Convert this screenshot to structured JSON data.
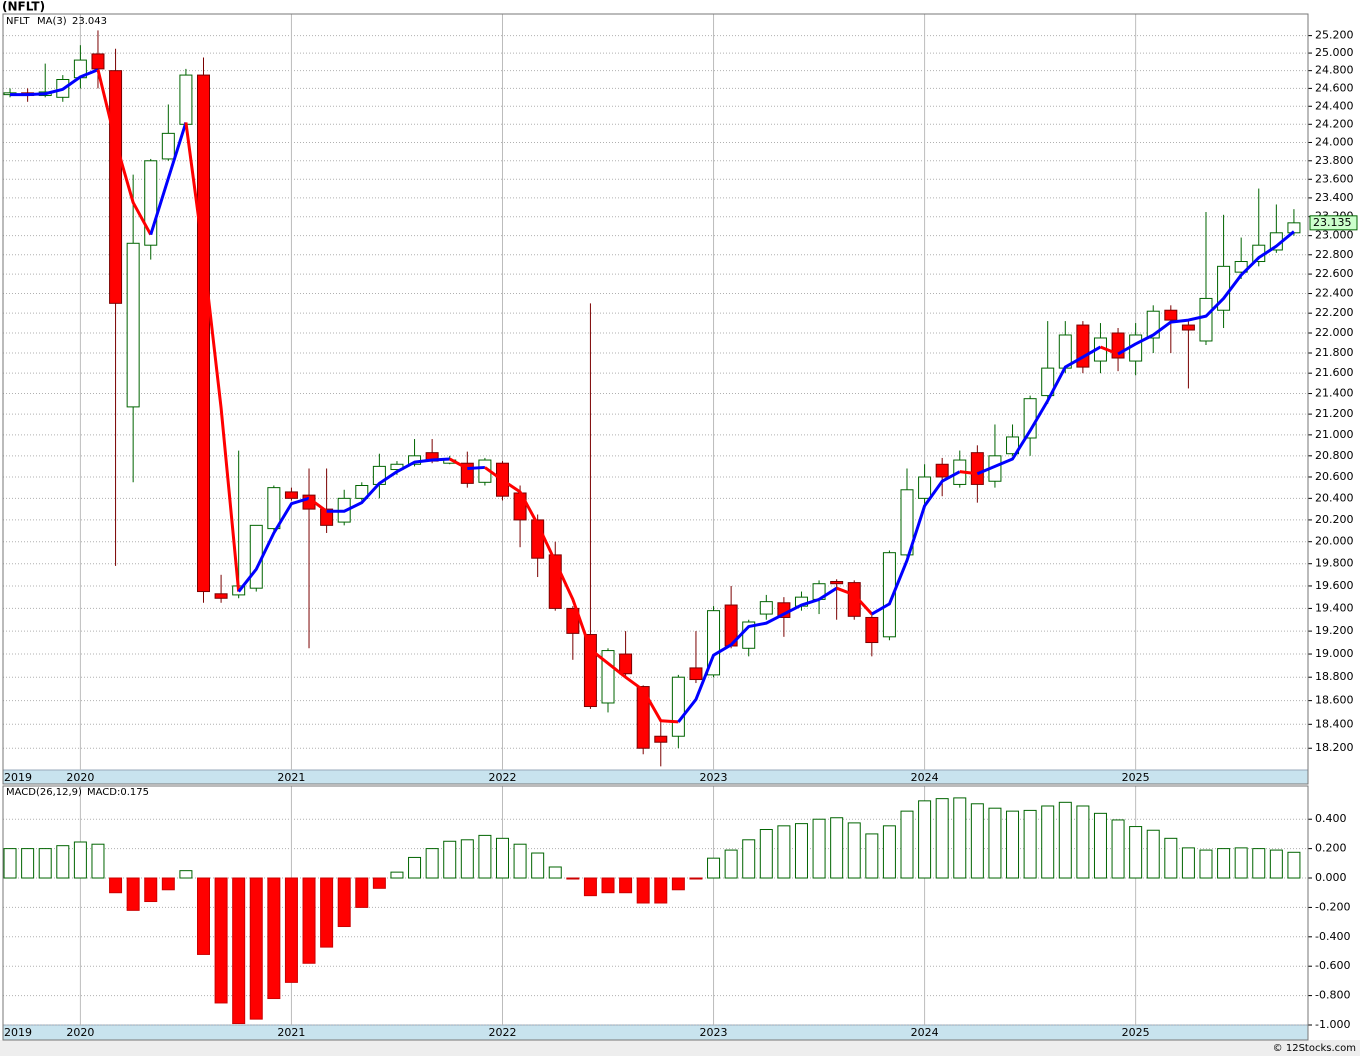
{
  "footer": "© 12Stocks.com",
  "chart_data": [
    {
      "type": "candlestick",
      "title": "(NFLT)",
      "log_scale": true,
      "grid": true,
      "up_color": "#006400",
      "down_color": "#ff0000",
      "xlim": [
        -0.4,
        73.8
      ],
      "xticks": [
        {
          "value": -0.4,
          "label": "2019"
        },
        {
          "value": 4,
          "label": "2020"
        },
        {
          "value": 16,
          "label": "2021"
        },
        {
          "value": 28,
          "label": "2022"
        },
        {
          "value": 40,
          "label": "2023"
        },
        {
          "value": 52,
          "label": "2024"
        },
        {
          "value": 64,
          "label": "2025"
        }
      ],
      "ylim": [
        18.02,
        25.45
      ],
      "yticks": [
        {
          "value": 18.2,
          "label": "18.200"
        },
        {
          "value": 18.4,
          "label": "18.400"
        },
        {
          "value": 18.6,
          "label": "18.600"
        },
        {
          "value": 18.8,
          "label": "18.800"
        },
        {
          "value": 19.0,
          "label": "19.000"
        },
        {
          "value": 19.2,
          "label": "19.200"
        },
        {
          "value": 19.4,
          "label": "19.400"
        },
        {
          "value": 19.6,
          "label": "19.600"
        },
        {
          "value": 19.8,
          "label": "19.800"
        },
        {
          "value": 20.0,
          "label": "20.000"
        },
        {
          "value": 20.2,
          "label": "20.200"
        },
        {
          "value": 20.4,
          "label": "20.400"
        },
        {
          "value": 20.6,
          "label": "20.600"
        },
        {
          "value": 20.8,
          "label": "20.800"
        },
        {
          "value": 21.0,
          "label": "21.000"
        },
        {
          "value": 21.2,
          "label": "21.200"
        },
        {
          "value": 21.4,
          "label": "21.400"
        },
        {
          "value": 21.6,
          "label": "21.600"
        },
        {
          "value": 21.8,
          "label": "21.800"
        },
        {
          "value": 22.0,
          "label": "22.000"
        },
        {
          "value": 22.2,
          "label": "22.200"
        },
        {
          "value": 22.4,
          "label": "22.400"
        },
        {
          "value": 22.6,
          "label": "22.600"
        },
        {
          "value": 22.8,
          "label": "22.800"
        },
        {
          "value": 23.0,
          "label": "23.000"
        },
        {
          "value": 23.2,
          "label": "23.200"
        },
        {
          "value": 23.4,
          "label": "23.400"
        },
        {
          "value": 23.6,
          "label": "23.600"
        },
        {
          "value": 23.8,
          "label": "23.800"
        },
        {
          "value": 24.0,
          "label": "24.000"
        },
        {
          "value": 24.2,
          "label": "24.200"
        },
        {
          "value": 24.4,
          "label": "24.400"
        },
        {
          "value": 24.6,
          "label": "24.600"
        },
        {
          "value": 24.8,
          "label": "24.800"
        },
        {
          "value": 25.0,
          "label": "25.000"
        },
        {
          "value": 25.2,
          "label": "25.200"
        }
      ],
      "series": [
        {
          "name": "NFLT",
          "color": "#006400",
          "open": [
            24.53,
            24.55,
            24.52,
            24.5,
            24.72,
            24.99,
            24.8,
            21.27,
            22.9,
            23.82,
            24.2,
            24.75,
            19.53,
            19.52,
            19.58,
            20.12,
            20.46,
            20.43,
            20.3,
            20.18,
            20.4,
            20.53,
            20.67,
            20.72,
            20.83,
            20.73,
            20.73,
            20.55,
            20.73,
            20.45,
            20.2,
            19.88,
            19.4,
            19.17,
            18.58,
            19.0,
            18.72,
            18.3,
            18.3,
            18.88,
            18.82,
            19.43,
            19.05,
            19.35,
            19.45,
            19.42,
            19.48,
            19.64,
            19.63,
            19.32,
            19.15,
            19.88,
            20.4,
            20.72,
            20.53,
            20.83,
            20.56,
            20.82,
            20.97,
            21.38,
            21.65,
            22.08,
            21.72,
            22.0,
            21.72,
            21.95,
            22.23,
            22.08,
            21.92,
            22.23,
            22.62,
            22.73,
            22.85,
            23.03
          ],
          "high": [
            24.6,
            24.6,
            24.88,
            24.75,
            25.09,
            25.26,
            25.05,
            23.65,
            23.82,
            24.42,
            24.82,
            24.95,
            19.7,
            20.85,
            20.15,
            20.52,
            20.5,
            20.68,
            20.68,
            20.48,
            20.55,
            20.82,
            20.75,
            20.96,
            20.96,
            20.8,
            20.84,
            20.78,
            20.75,
            20.52,
            20.25,
            20.0,
            19.42,
            22.3,
            19.05,
            19.2,
            18.73,
            18.42,
            18.82,
            19.2,
            19.42,
            19.6,
            19.3,
            19.52,
            19.5,
            19.55,
            19.65,
            19.66,
            19.65,
            19.35,
            19.92,
            20.68,
            20.72,
            20.78,
            20.85,
            20.9,
            21.1,
            21.1,
            21.38,
            22.12,
            22.12,
            22.12,
            22.1,
            22.05,
            22.1,
            22.28,
            22.28,
            22.12,
            23.25,
            23.22,
            22.98,
            23.5,
            23.33,
            23.28
          ],
          "low": [
            24.5,
            24.45,
            24.5,
            24.45,
            24.6,
            24.6,
            19.78,
            20.55,
            22.75,
            23.8,
            24.15,
            19.45,
            19.45,
            19.49,
            19.55,
            20.1,
            20.38,
            19.05,
            20.08,
            20.15,
            20.38,
            20.4,
            20.62,
            20.7,
            20.73,
            20.72,
            20.5,
            20.52,
            20.38,
            19.95,
            19.68,
            19.38,
            18.95,
            18.53,
            18.5,
            18.8,
            18.15,
            18.05,
            18.2,
            18.75,
            18.8,
            19.05,
            18.98,
            19.3,
            19.15,
            19.38,
            19.35,
            19.3,
            19.3,
            18.98,
            19.12,
            19.85,
            20.3,
            20.42,
            20.5,
            20.36,
            20.5,
            20.8,
            20.8,
            21.3,
            21.6,
            21.6,
            21.6,
            21.62,
            21.58,
            21.8,
            21.8,
            21.45,
            21.88,
            22.05,
            22.55,
            22.68,
            22.82,
            23.0
          ],
          "close": [
            24.55,
            24.52,
            24.56,
            24.7,
            24.92,
            24.82,
            22.3,
            22.92,
            23.8,
            24.1,
            24.75,
            19.55,
            19.49,
            19.6,
            20.15,
            20.5,
            20.4,
            20.3,
            20.15,
            20.4,
            20.52,
            20.7,
            20.72,
            20.8,
            20.75,
            20.76,
            20.54,
            20.76,
            20.42,
            20.2,
            19.85,
            19.4,
            19.18,
            18.55,
            19.03,
            18.83,
            18.2,
            18.25,
            18.8,
            18.78,
            19.38,
            19.07,
            19.28,
            19.46,
            19.32,
            19.5,
            19.62,
            19.62,
            19.33,
            19.1,
            19.9,
            20.48,
            20.6,
            20.6,
            20.76,
            20.53,
            20.8,
            20.98,
            21.35,
            21.65,
            21.98,
            21.66,
            21.95,
            21.75,
            21.98,
            22.22,
            22.13,
            22.03,
            22.35,
            22.68,
            22.73,
            22.9,
            23.03,
            23.135
          ]
        },
        {
          "name": "MA(3)",
          "color": "#0000ff",
          "down_color": "#ff0000",
          "legend_value": 23.043,
          "values": [
            24.53,
            24.53,
            24.54,
            24.59,
            24.73,
            24.81,
            24.01,
            23.35,
            23.01,
            23.61,
            24.22,
            22.8,
            21.26,
            19.55,
            19.75,
            20.08,
            20.35,
            20.4,
            20.28,
            20.28,
            20.36,
            20.54,
            20.65,
            20.74,
            20.76,
            20.77,
            20.68,
            20.69,
            20.57,
            20.46,
            20.16,
            19.82,
            19.48,
            19.04,
            18.92,
            18.8,
            18.69,
            18.43,
            18.42,
            18.61,
            18.99,
            19.08,
            19.24,
            19.27,
            19.35,
            19.43,
            19.48,
            19.58,
            19.52,
            19.35,
            19.44,
            19.83,
            20.33,
            20.56,
            20.65,
            20.63,
            20.7,
            20.77,
            21.04,
            21.33,
            21.66,
            21.76,
            21.86,
            21.79,
            21.89,
            21.98,
            22.11,
            22.13,
            22.17,
            22.35,
            22.59,
            22.77,
            22.89,
            23.043
          ]
        }
      ]
    },
    {
      "type": "bar",
      "legend": "MACD:0.175",
      "grid": true,
      "xlim": [
        -0.4,
        73.8
      ],
      "xticks": [
        {
          "value": -0.4,
          "label": "2019"
        },
        {
          "value": 4,
          "label": "2020"
        },
        {
          "value": 16,
          "label": "2021"
        },
        {
          "value": 28,
          "label": "2022"
        },
        {
          "value": 40,
          "label": "2023"
        },
        {
          "value": 52,
          "label": "2024"
        },
        {
          "value": 64,
          "label": "2025"
        }
      ],
      "ylim": [
        -1.0,
        0.626
      ],
      "yticks": [
        {
          "value": -1.0,
          "label": "-1.000"
        },
        {
          "value": -0.8,
          "label": "-0.800"
        },
        {
          "value": -0.6,
          "label": "-0.600"
        },
        {
          "value": -0.4,
          "label": "-0.400"
        },
        {
          "value": -0.2,
          "label": "-0.200"
        },
        {
          "value": 0,
          "label": "0.000"
        },
        {
          "value": 0.2,
          "label": "0.200"
        },
        {
          "value": 0.4,
          "label": "0.400"
        }
      ],
      "series": [
        {
          "name": "MACD(26,12,9)",
          "color": "#006400",
          "down_color": "#ff0000",
          "values": [
            0.2,
            0.2,
            0.2,
            0.22,
            0.245,
            0.23,
            -0.1,
            -0.22,
            -0.16,
            -0.08,
            0.05,
            -0.52,
            -0.85,
            -0.99,
            -0.96,
            -0.82,
            -0.71,
            -0.58,
            -0.47,
            -0.33,
            -0.2,
            -0.07,
            0.04,
            0.14,
            0.2,
            0.25,
            0.26,
            0.29,
            0.27,
            0.23,
            0.17,
            0.075,
            -0.005,
            -0.12,
            -0.1,
            -0.1,
            -0.17,
            -0.17,
            -0.08,
            -0.005,
            0.135,
            0.19,
            0.26,
            0.33,
            0.355,
            0.37,
            0.4,
            0.41,
            0.375,
            0.3,
            0.355,
            0.455,
            0.525,
            0.54,
            0.545,
            0.505,
            0.475,
            0.455,
            0.46,
            0.49,
            0.515,
            0.49,
            0.44,
            0.395,
            0.35,
            0.325,
            0.27,
            0.205,
            0.19,
            0.2,
            0.205,
            0.2,
            0.19,
            0.175
          ]
        }
      ]
    }
  ]
}
